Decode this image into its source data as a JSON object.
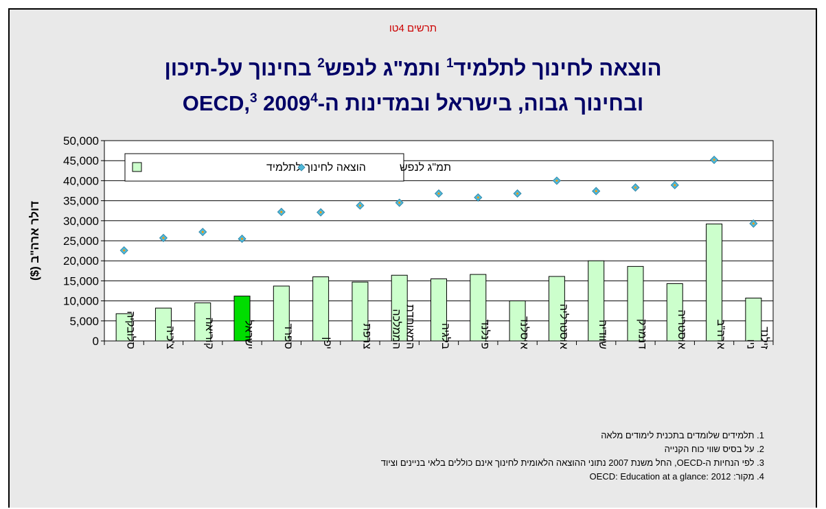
{
  "header": {
    "subtitle": "תרשים 4טו",
    "title_line1_a": "הוצאה לחינוך לתלמיד",
    "title_line1_sup1": "1",
    "title_line1_b": " ותמ\"ג לנפש",
    "title_line1_sup2": "2",
    "title_line1_c": " בחינוך על-תיכון",
    "title_line2_a": "ובחינוך גבוה, בישראל ובמדינות ה-OECD,",
    "title_line2_sup3": "3",
    "title_line2_b": " 2009",
    "title_line2_sup4": "4"
  },
  "colors": {
    "bar": "#ccffcc",
    "bar_highlight": "#00dd00",
    "marker": "#4fb8d8",
    "marker_center": "#ff9900",
    "title": "#000066",
    "subtitle": "#cc0000",
    "background": "#e9e9e9"
  },
  "chart_data": {
    "type": "bar",
    "ylabel": "דולר ארה\"ב ($)",
    "ylim": [
      0,
      50000
    ],
    "yticks": [
      "0",
      "5,000",
      "10,000",
      "15,000",
      "20,000",
      "25,000",
      "30,000",
      "35,000",
      "40,000",
      "45,000",
      "50,000"
    ],
    "grid": true,
    "legend_position": "top-left",
    "categories": [
      "סלובקיה",
      "צ'כיה",
      "קוריאה",
      "ישראל",
      "ספרד",
      "יפן",
      "צרפת",
      "הממלכה המאוחדת",
      "בלגיה",
      "פינלנד",
      "איסלנד",
      "אוסטרליה",
      "שוודיה",
      "דנמרק",
      "אוסטריה",
      "ארה\"ב",
      "ניו זילנד"
    ],
    "highlight_category": "ישראל",
    "series": [
      {
        "name": "הוצאה לחינוך לתלמיד",
        "kind": "bar",
        "values": [
          6800,
          8200,
          9500,
          11200,
          13700,
          16000,
          14700,
          16400,
          15500,
          16600,
          10000,
          16100,
          20000,
          18600,
          14300,
          29200,
          10700
        ]
      },
      {
        "name": "תמ\"ג לנפש",
        "kind": "marker",
        "values": [
          22600,
          25700,
          27200,
          25500,
          32200,
          32100,
          33800,
          34500,
          36800,
          35800,
          36800,
          40000,
          37400,
          38300,
          38900,
          45200,
          29300
        ]
      }
    ]
  },
  "footnotes": [
    "1. תלמידים שלומדים בתכנית לימודים מלאה",
    "2. על בסיס שווי כוח הקנייה",
    "3. לפי הנחיות ה-OECD, החל משנת 2007 נתוני ההוצאה הלאומית לחינוך אינם כוללים בלאי בניינים וציוד",
    "4. מקור: OECD: Education at a glance: 2012"
  ]
}
